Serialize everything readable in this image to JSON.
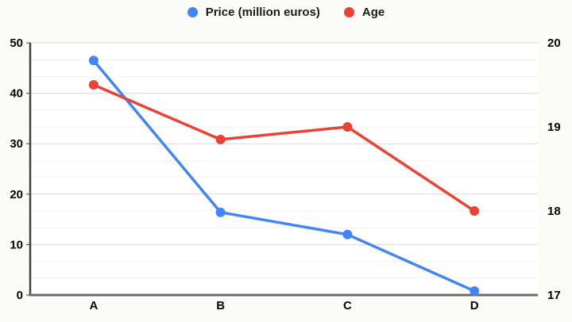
{
  "chart_data": {
    "type": "line",
    "title": "",
    "categories": [
      "A",
      "B",
      "C",
      "D"
    ],
    "series": [
      {
        "name": "Price (million euros)",
        "axis": "left",
        "color": "#4285F4",
        "values": [
          46.5,
          16.4,
          12.0,
          0.8
        ]
      },
      {
        "name": "Age",
        "axis": "right",
        "color": "#EA4335",
        "values": [
          19.5,
          18.85,
          19.0,
          18.0
        ]
      }
    ],
    "left_axis": {
      "min": 0,
      "max": 50,
      "ticks": [
        0,
        10,
        20,
        30,
        40,
        50
      ]
    },
    "right_axis": {
      "min": 17,
      "max": 20,
      "ticks": [
        17,
        18,
        19,
        20
      ]
    },
    "grid": {
      "major": true,
      "minor_per_major": 3
    },
    "legend_position": "top",
    "styles": {
      "plot_background": "#ffffff",
      "major_grid_color": "#d9d9d9",
      "minor_grid_color": "#f2f2ee",
      "left_axis_line_color": "#424242",
      "bottom_axis_line_color": "#6b6b6b",
      "tick_label_color": "#050505"
    }
  }
}
